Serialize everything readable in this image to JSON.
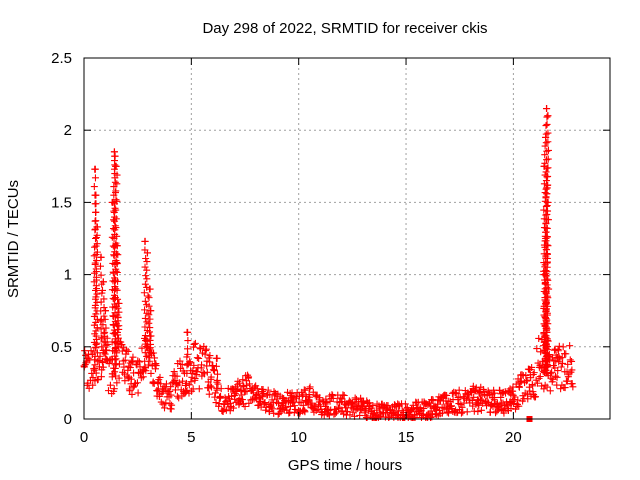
{
  "chart_data": {
    "type": "scatter",
    "title": "Day 298 of 2022, SRMTID for receiver ckis",
    "xlabel": "GPS time / hours",
    "ylabel": "SRMTID / TECUs",
    "xlim": [
      0,
      24.5
    ],
    "ylim": [
      0,
      2.5
    ],
    "xticks": [
      0,
      5,
      10,
      15,
      20
    ],
    "xtick_labels": [
      "0",
      "5",
      "10",
      "15",
      "20"
    ],
    "yticks": [
      0,
      0.5,
      1,
      1.5,
      2,
      2.5
    ],
    "ytick_labels": [
      "0",
      "0.5",
      "1",
      "1.5",
      "2",
      "2.5"
    ],
    "grid": true,
    "marker": "plus",
    "color": "#ff0000",
    "series": [
      {
        "name": "SRMTID",
        "baseline": [
          [
            0,
            0.32
          ],
          [
            0.5,
            0.35
          ],
          [
            0.8,
            0.5
          ],
          [
            1.0,
            0.45
          ],
          [
            1.3,
            0.25
          ],
          [
            1.6,
            0.5
          ],
          [
            1.9,
            0.4
          ],
          [
            2.2,
            0.28
          ],
          [
            2.7,
            0.35
          ],
          [
            3.0,
            0.45
          ],
          [
            3.3,
            0.3
          ],
          [
            3.7,
            0.17
          ],
          [
            4.0,
            0.15
          ],
          [
            4.3,
            0.25
          ],
          [
            4.7,
            0.3
          ],
          [
            5.2,
            0.38
          ],
          [
            5.6,
            0.35
          ],
          [
            6.0,
            0.3
          ],
          [
            6.2,
            0.2
          ],
          [
            6.5,
            0.13
          ],
          [
            7.0,
            0.15
          ],
          [
            7.6,
            0.2
          ],
          [
            8.0,
            0.14
          ],
          [
            9.0,
            0.11
          ],
          [
            10.0,
            0.12
          ],
          [
            10.5,
            0.14
          ],
          [
            11.0,
            0.1
          ],
          [
            12.0,
            0.1
          ],
          [
            13.0,
            0.08
          ],
          [
            13.5,
            0.05
          ],
          [
            14.5,
            0.05
          ],
          [
            15.5,
            0.06
          ],
          [
            16.0,
            0.07
          ],
          [
            17.0,
            0.1
          ],
          [
            18.0,
            0.14
          ],
          [
            19.0,
            0.13
          ],
          [
            19.5,
            0.12
          ],
          [
            20.0,
            0.15
          ],
          [
            20.5,
            0.22
          ],
          [
            21.0,
            0.25
          ],
          [
            21.2,
            0.45
          ],
          [
            21.6,
            0.3
          ],
          [
            22.0,
            0.35
          ],
          [
            22.5,
            0.38
          ],
          [
            22.8,
            0.4
          ]
        ],
        "spikes": [
          {
            "x": 0.5,
            "y": 1.73
          },
          {
            "x": 0.55,
            "y": 1.55
          },
          {
            "x": 0.6,
            "y": 1.33
          },
          {
            "x": 0.8,
            "y": 1.12
          },
          {
            "x": 0.9,
            "y": 0.95
          },
          {
            "x": 1.0,
            "y": 0.75
          },
          {
            "x": 1.42,
            "y": 1.85
          },
          {
            "x": 1.45,
            "y": 1.82
          },
          {
            "x": 1.5,
            "y": 1.75
          },
          {
            "x": 1.35,
            "y": 1.5
          },
          {
            "x": 1.55,
            "y": 1.2
          },
          {
            "x": 1.6,
            "y": 0.8
          },
          {
            "x": 2.85,
            "y": 1.23
          },
          {
            "x": 2.95,
            "y": 1.15
          },
          {
            "x": 3.05,
            "y": 0.9
          },
          {
            "x": 3.1,
            "y": 0.75
          },
          {
            "x": 4.8,
            "y": 0.6
          },
          {
            "x": 6.2,
            "y": 0.42
          },
          {
            "x": 21.55,
            "y": 2.15
          },
          {
            "x": 21.6,
            "y": 2.1
          },
          {
            "x": 21.5,
            "y": 1.95
          },
          {
            "x": 21.45,
            "y": 1.75
          },
          {
            "x": 21.55,
            "y": 1.6
          },
          {
            "x": 21.5,
            "y": 1.25
          },
          {
            "x": 21.45,
            "y": 1.0
          },
          {
            "x": 21.5,
            "y": 0.8
          },
          {
            "x": 21.55,
            "y": 0.6
          }
        ],
        "outliers": [
          {
            "x": 20.75,
            "y": 0.0,
            "marker": "square"
          }
        ]
      }
    ]
  }
}
